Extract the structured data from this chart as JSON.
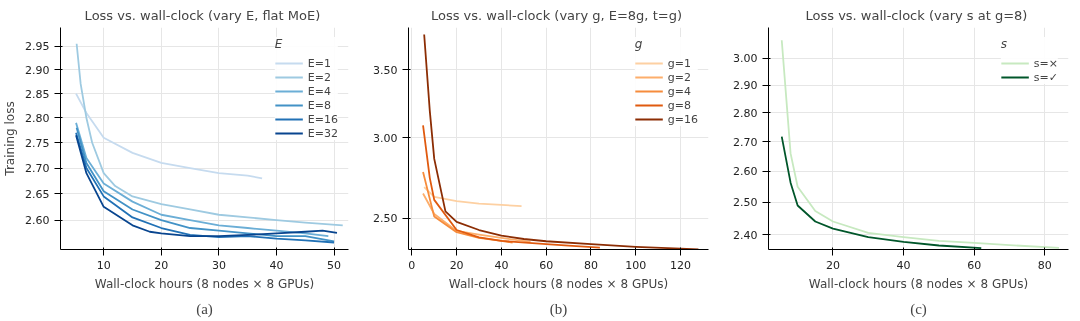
{
  "chart_data": [
    {
      "type": "line",
      "title": "Loss vs. wall-clock  (vary E, flat MoE)",
      "xlabel": "Wall-clock hours (8 nodes × 8 GPUs)",
      "ylabel": "Training loss",
      "legend_title": "E",
      "legend": "top right",
      "grid": true,
      "log": "y",
      "line_style": "solid",
      "annotations": [
        "(a)"
      ],
      "xlim": [
        2.5,
        52.5
      ],
      "xticks": [
        10,
        20,
        30,
        40,
        50
      ],
      "ylim": [
        2.545,
        2.99
      ],
      "yticks": [
        {
          "value": 2.6,
          "label": "2.60"
        },
        {
          "value": 2.65,
          "label": "2.65"
        },
        {
          "value": 2.7,
          "label": "2.70"
        },
        {
          "value": 2.75,
          "label": "2.75"
        },
        {
          "value": 2.8,
          "label": "2.80"
        },
        {
          "value": 2.85,
          "label": "2.85"
        },
        {
          "value": 2.9,
          "label": "2.90"
        },
        {
          "value": 2.95,
          "label": "2.95"
        }
      ],
      "series": [
        {
          "name": "E=1",
          "color": "#c6dbef",
          "x": [
            5.2,
            7,
            10,
            15,
            20,
            25,
            30,
            35,
            37.5
          ],
          "values": [
            2.85,
            2.81,
            2.76,
            2.73,
            2.71,
            2.7,
            2.69,
            2.685,
            2.68
          ]
        },
        {
          "name": "E=2",
          "color": "#9ecae1",
          "x": [
            5.3,
            6,
            7,
            8,
            10,
            12,
            15,
            20,
            25,
            30,
            35,
            40,
            45,
            51.5
          ],
          "values": [
            2.955,
            2.87,
            2.8,
            2.75,
            2.69,
            2.665,
            2.645,
            2.63,
            2.62,
            2.61,
            2.605,
            2.6,
            2.595,
            2.59
          ]
        },
        {
          "name": "E=4",
          "color": "#6baed6",
          "x": [
            5.2,
            7,
            10,
            15,
            20,
            25,
            30,
            35,
            40,
            45,
            49
          ],
          "values": [
            2.79,
            2.72,
            2.67,
            2.635,
            2.61,
            2.6,
            2.59,
            2.585,
            2.58,
            2.575,
            2.57
          ]
        },
        {
          "name": "E=8",
          "color": "#4292c6",
          "x": [
            5.3,
            7,
            10,
            15,
            20,
            25,
            30,
            35,
            40,
            45,
            50
          ],
          "values": [
            2.78,
            2.71,
            2.655,
            2.62,
            2.6,
            2.585,
            2.58,
            2.575,
            2.57,
            2.57,
            2.56
          ]
        },
        {
          "name": "E=16",
          "color": "#2171b5",
          "x": [
            5.2,
            7,
            10,
            15,
            20,
            25,
            30,
            35,
            40,
            45,
            50
          ],
          "values": [
            2.77,
            2.7,
            2.645,
            2.605,
            2.585,
            2.572,
            2.568,
            2.57,
            2.565,
            2.562,
            2.558
          ]
        },
        {
          "name": "E=32",
          "color": "#08458f",
          "x": [
            5.2,
            7,
            10,
            15,
            18,
            20,
            25,
            30,
            35,
            40,
            45,
            48,
            50.5
          ],
          "values": [
            2.765,
            2.69,
            2.625,
            2.59,
            2.578,
            2.575,
            2.57,
            2.57,
            2.572,
            2.575,
            2.578,
            2.58,
            2.576
          ]
        }
      ]
    },
    {
      "type": "line",
      "title": "Loss vs. wall-clock  (vary g, E=8g, t=g)",
      "xlabel": "Wall-clock hours (8 nodes × 8 GPUs)",
      "legend_title": "g",
      "legend": "top right",
      "grid": true,
      "log": "y",
      "line_style": "solid",
      "annotations": [
        "(b)"
      ],
      "xlim": [
        -1.5,
        132.5
      ],
      "xticks": [
        0,
        20,
        40,
        60,
        80,
        100,
        120
      ],
      "ylim": [
        2.33,
        3.85
      ],
      "yticks": [
        {
          "value": 2.5,
          "label": "2.50"
        },
        {
          "value": 3.0,
          "label": "3.00"
        },
        {
          "value": 3.5,
          "label": "3.50"
        }
      ],
      "series": [
        {
          "name": "g=1",
          "color": "#fdd0a2",
          "x": [
            5.5,
            10,
            20,
            30,
            40,
            49
          ],
          "values": [
            2.683,
            2.625,
            2.6,
            2.585,
            2.577,
            2.57
          ]
        },
        {
          "name": "g=2",
          "color": "#fdae6b",
          "x": [
            5,
            10,
            20,
            30,
            40,
            53
          ],
          "values": [
            2.645,
            2.525,
            2.43,
            2.41,
            2.392,
            2.37
          ]
        },
        {
          "name": "g=4",
          "color": "#f68c3c",
          "x": [
            5,
            10,
            20,
            30,
            40,
            45
          ],
          "values": [
            2.776,
            2.51,
            2.423,
            2.392,
            2.376,
            2.366
          ]
        },
        {
          "name": "g=8",
          "color": "#e05a0f",
          "x": [
            5,
            8,
            10,
            20,
            30,
            40,
            60,
            70,
            84
          ],
          "values": [
            3.085,
            2.74,
            2.607,
            2.435,
            2.395,
            2.376,
            2.359,
            2.35,
            2.34
          ]
        },
        {
          "name": "g=16",
          "color": "#8c2d04",
          "x": [
            5.5,
            8,
            10,
            15,
            20,
            30,
            40,
            50,
            60,
            80,
            100,
            120,
            128
          ],
          "values": [
            3.79,
            3.19,
            2.86,
            2.54,
            2.48,
            2.435,
            2.404,
            2.386,
            2.374,
            2.358,
            2.344,
            2.335,
            2.331
          ]
        }
      ]
    },
    {
      "type": "line",
      "title": "Loss vs. wall-clock  (vary s at g=8)",
      "xlabel": "Wall-clock hours (8 nodes × 8 GPUs)",
      "legend_title": "s",
      "legend": "top right",
      "grid": true,
      "log": "y",
      "line_style": "solid",
      "annotations": [
        "(c)"
      ],
      "xlim": [
        1.75,
        86.7
      ],
      "xticks": [
        20,
        40,
        60,
        80
      ],
      "ylim": [
        2.355,
        3.12
      ],
      "yticks": [
        {
          "value": 2.4,
          "label": "2.40"
        },
        {
          "value": 2.5,
          "label": "2.50"
        },
        {
          "value": 2.6,
          "label": "2.60"
        },
        {
          "value": 2.7,
          "label": "2.70"
        },
        {
          "value": 2.8,
          "label": "2.80"
        },
        {
          "value": 2.9,
          "label": "2.90"
        },
        {
          "value": 3.0,
          "label": "3.00"
        }
      ],
      "series": [
        {
          "name": "s=×",
          "color": "#c7e9c0",
          "x": [
            5.5,
            8,
            10,
            15,
            20,
            30,
            40,
            50,
            60,
            70,
            84
          ],
          "values": [
            3.07,
            2.66,
            2.55,
            2.473,
            2.44,
            2.405,
            2.392,
            2.381,
            2.375,
            2.368,
            2.36
          ]
        },
        {
          "name": "s=✓",
          "color": "#00562a",
          "x": [
            5.5,
            8,
            10,
            15,
            20,
            30,
            40,
            50,
            62
          ],
          "values": [
            2.717,
            2.563,
            2.49,
            2.44,
            2.418,
            2.392,
            2.378,
            2.367,
            2.359
          ]
        }
      ]
    }
  ]
}
